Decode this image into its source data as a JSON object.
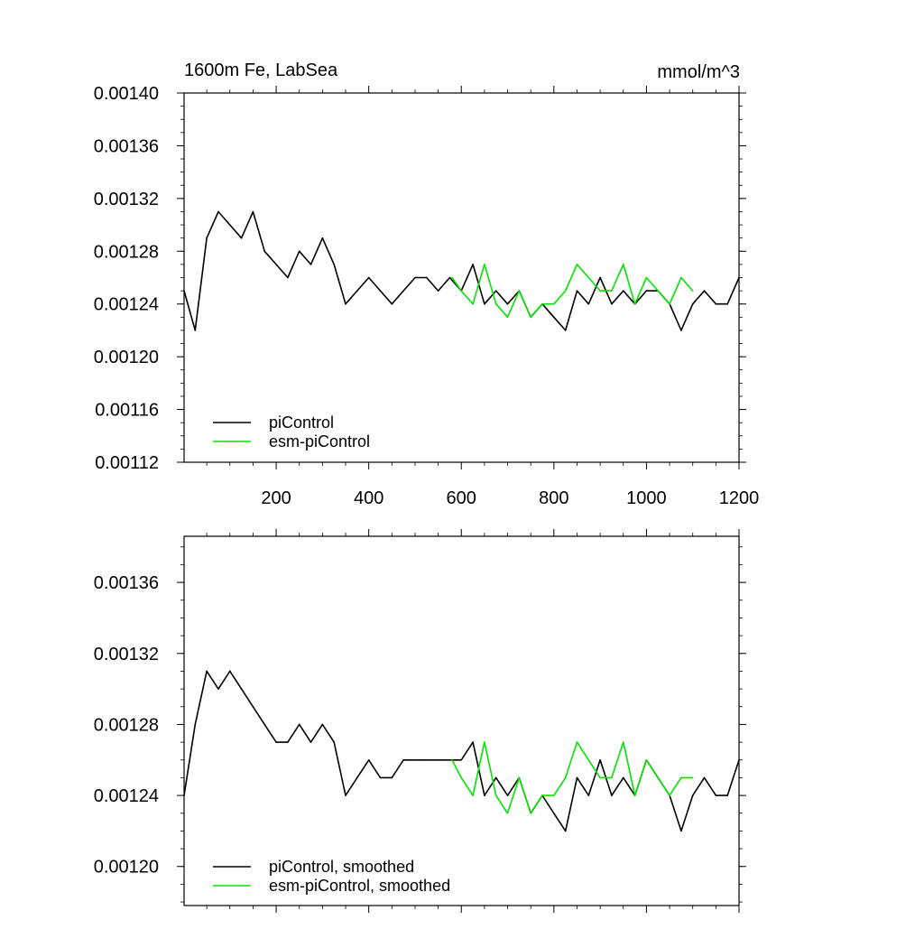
{
  "colors": {
    "picontrol": "#000000",
    "esm_picontrol": "#00e600"
  },
  "chart_data": [
    {
      "type": "line",
      "title": "1600m Fe, LabSea",
      "units": "mmol/m^3",
      "xlim": [
        1,
        1200
      ],
      "ylim": [
        0.00112,
        0.0014
      ],
      "xticks": [
        "200",
        "400",
        "600",
        "800",
        "1000",
        "1200"
      ],
      "yticks": [
        "0.00112",
        "0.00116",
        "0.00120",
        "0.00124",
        "0.00128",
        "0.00132",
        "0.00136",
        "0.00140"
      ],
      "legend_position": "bottom-left",
      "series": [
        {
          "name": "piControl",
          "color": "#000000",
          "x": [
            1,
            25,
            50,
            75,
            100,
            125,
            150,
            175,
            200,
            225,
            250,
            275,
            300,
            325,
            350,
            375,
            400,
            425,
            450,
            475,
            500,
            525,
            550,
            575,
            600,
            625,
            650,
            675,
            700,
            725,
            750,
            775,
            800,
            825,
            850,
            875,
            900,
            925,
            950,
            975,
            1000,
            1025,
            1050,
            1075,
            1100,
            1125,
            1150,
            1175,
            1200
          ],
          "y": [
            0.00125,
            0.00122,
            0.00129,
            0.00131,
            0.0013,
            0.00129,
            0.00131,
            0.00128,
            0.00127,
            0.00126,
            0.00128,
            0.00127,
            0.00129,
            0.00127,
            0.00124,
            0.00125,
            0.00126,
            0.00125,
            0.00124,
            0.00125,
            0.00126,
            0.00126,
            0.00125,
            0.00126,
            0.00125,
            0.00127,
            0.00124,
            0.00125,
            0.00124,
            0.00125,
            0.00123,
            0.00124,
            0.00123,
            0.00122,
            0.00125,
            0.00124,
            0.00126,
            0.00124,
            0.00125,
            0.00124,
            0.00125,
            0.00125,
            0.00124,
            0.00122,
            0.00124,
            0.00125,
            0.00124,
            0.00124,
            0.00126
          ]
        },
        {
          "name": "esm-piControl",
          "color": "#00e600",
          "x": [
            580,
            600,
            625,
            650,
            675,
            700,
            725,
            750,
            775,
            800,
            825,
            850,
            875,
            900,
            925,
            950,
            975,
            1000,
            1025,
            1050,
            1075,
            1100
          ],
          "y": [
            0.00126,
            0.00125,
            0.00124,
            0.00127,
            0.00124,
            0.00123,
            0.00125,
            0.00123,
            0.00124,
            0.00124,
            0.00125,
            0.00127,
            0.00126,
            0.00125,
            0.00125,
            0.00127,
            0.00124,
            0.00126,
            0.00125,
            0.00124,
            0.00126,
            0.00125
          ]
        }
      ]
    },
    {
      "type": "line",
      "xlim": [
        1,
        1200
      ],
      "ylim": [
        0.001178,
        0.001386
      ],
      "yticks": [
        "0.00120",
        "0.00124",
        "0.00128",
        "0.00132",
        "0.00136"
      ],
      "legend_position": "bottom-left",
      "series": [
        {
          "name": "piControl, smoothed",
          "color": "#000000",
          "x": [
            1,
            25,
            50,
            75,
            100,
            125,
            150,
            175,
            200,
            225,
            250,
            275,
            300,
            325,
            350,
            375,
            400,
            425,
            450,
            475,
            500,
            525,
            550,
            575,
            600,
            625,
            650,
            675,
            700,
            725,
            750,
            775,
            800,
            825,
            850,
            875,
            900,
            925,
            950,
            975,
            1000,
            1025,
            1050,
            1075,
            1100,
            1125,
            1150,
            1175,
            1200
          ],
          "y": [
            0.00124,
            0.00128,
            0.00131,
            0.0013,
            0.00131,
            0.0013,
            0.00129,
            0.00128,
            0.00127,
            0.00127,
            0.00128,
            0.00127,
            0.00128,
            0.00127,
            0.00124,
            0.00125,
            0.00126,
            0.00125,
            0.00125,
            0.00126,
            0.00126,
            0.00126,
            0.00126,
            0.00126,
            0.00126,
            0.00127,
            0.00124,
            0.00125,
            0.00124,
            0.00125,
            0.00123,
            0.00124,
            0.00123,
            0.00122,
            0.00125,
            0.00124,
            0.00126,
            0.00124,
            0.00125,
            0.00124,
            0.00126,
            0.00125,
            0.00124,
            0.00122,
            0.00124,
            0.00125,
            0.00124,
            0.00124,
            0.00126
          ]
        },
        {
          "name": "esm-piControl, smoothed",
          "color": "#00e600",
          "x": [
            580,
            600,
            625,
            650,
            675,
            700,
            725,
            750,
            775,
            800,
            825,
            850,
            875,
            900,
            925,
            950,
            975,
            1000,
            1025,
            1050,
            1075,
            1100
          ],
          "y": [
            0.00126,
            0.00125,
            0.00124,
            0.00127,
            0.00124,
            0.00123,
            0.00125,
            0.00123,
            0.00124,
            0.00124,
            0.00125,
            0.00127,
            0.00126,
            0.00125,
            0.00125,
            0.00127,
            0.00124,
            0.00126,
            0.00125,
            0.00124,
            0.00125,
            0.00125
          ]
        }
      ]
    }
  ]
}
